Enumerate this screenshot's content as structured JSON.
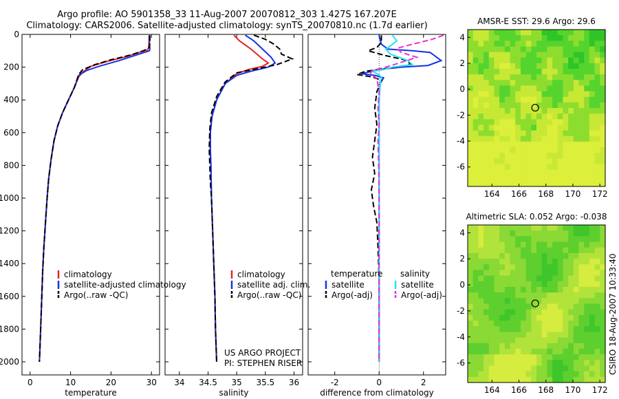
{
  "titles": {
    "line1": "Argo profile: AO 5901358_33 11-Aug-2007 20070812_303 1.427S 167.207E",
    "line2": "Climatology: CARS2006. Satellite-adjusted climatology: synTS_20070810.nc (1.7d earlier)"
  },
  "stamp": "CSIRO 18-Aug-2007 10:33:40",
  "project": {
    "line1": "US ARGO PROJECT",
    "line2": "PI: STEPHEN RISER"
  },
  "colors": {
    "clim": "#e8231e",
    "sat": "#1431e6",
    "argo": "#000000",
    "sat_sal": "#27e0f0",
    "argo_sal": "#e62fd2"
  },
  "chart_data": [
    {
      "type": "line",
      "id": "temperature",
      "xlabel": "temperature",
      "ylabel": "",
      "xlim": [
        -2,
        32
      ],
      "ylim": [
        2080,
        0
      ],
      "xticks": [
        0,
        10,
        20,
        30
      ],
      "yticks": [
        0,
        200,
        400,
        600,
        800,
        1000,
        1200,
        1400,
        1600,
        1800,
        2000
      ],
      "legend": [
        "climatology",
        "satellite-adjusted climatology",
        "Argo(..raw -QC)"
      ],
      "series": [
        {
          "name": "climatology",
          "color": "clim",
          "dash": false,
          "points": [
            [
              29.4,
              5
            ],
            [
              29.4,
              40
            ],
            [
              29.3,
              80
            ],
            [
              29.0,
              95
            ],
            [
              27,
              110
            ],
            [
              24,
              135
            ],
            [
              19,
              165
            ],
            [
              15,
              195
            ],
            [
              13,
              230
            ],
            [
              12,
              260
            ],
            [
              11,
              320
            ],
            [
              9.5,
              400
            ],
            [
              8,
              480
            ],
            [
              6.8,
              560
            ],
            [
              5.9,
              650
            ],
            [
              5.2,
              760
            ],
            [
              4.6,
              880
            ],
            [
              4.2,
              1000
            ],
            [
              3.8,
              1150
            ],
            [
              3.4,
              1300
            ],
            [
              3.1,
              1450
            ],
            [
              2.9,
              1600
            ],
            [
              2.6,
              1800
            ],
            [
              2.3,
              2000
            ]
          ]
        },
        {
          "name": "satellite-adjusted climatology",
          "color": "sat",
          "dash": false,
          "points": [
            [
              29.5,
              5
            ],
            [
              29.5,
              60
            ],
            [
              29.6,
              90
            ],
            [
              29.5,
              100
            ],
            [
              27,
              120
            ],
            [
              22,
              160
            ],
            [
              17,
              195
            ],
            [
              14,
              220
            ],
            [
              12,
              250
            ],
            [
              11,
              320
            ],
            [
              9.5,
              400
            ],
            [
              8,
              480
            ],
            [
              6.8,
              560
            ],
            [
              5.9,
              650
            ],
            [
              5.2,
              760
            ],
            [
              4.6,
              880
            ],
            [
              4.2,
              1000
            ],
            [
              3.8,
              1150
            ],
            [
              3.4,
              1300
            ],
            [
              3.1,
              1450
            ],
            [
              2.9,
              1600
            ],
            [
              2.6,
              1800
            ],
            [
              2.3,
              2000
            ]
          ]
        },
        {
          "name": "Argo(..raw -QC)",
          "color": "argo",
          "dash": true,
          "points": [
            [
              29.6,
              5
            ],
            [
              29.6,
              50
            ],
            [
              29.5,
              80
            ],
            [
              28,
              100
            ],
            [
              25,
              125
            ],
            [
              20,
              155
            ],
            [
              16,
              185
            ],
            [
              13,
              215
            ],
            [
              12,
              245
            ],
            [
              11,
              320
            ],
            [
              9.5,
              400
            ],
            [
              8,
              480
            ],
            [
              6.8,
              560
            ],
            [
              5.9,
              650
            ],
            [
              5.2,
              760
            ],
            [
              4.6,
              880
            ],
            [
              4.2,
              1000
            ],
            [
              3.8,
              1150
            ],
            [
              3.4,
              1300
            ],
            [
              3.1,
              1450
            ],
            [
              2.9,
              1600
            ],
            [
              2.6,
              1800
            ],
            [
              2.3,
              2000
            ]
          ]
        }
      ]
    },
    {
      "type": "line",
      "id": "salinity",
      "xlabel": "salinity",
      "xlim": [
        33.75,
        36.15
      ],
      "ylim": [
        2080,
        0
      ],
      "xticks": [
        34,
        34.5,
        35,
        35.5,
        36
      ],
      "legend": [
        "climatology",
        "satellite adj. clim.",
        "Argo(..raw -QC)"
      ],
      "series": [
        {
          "name": "climatology",
          "color": "clim",
          "dash": false,
          "points": [
            [
              34.95,
              5
            ],
            [
              35.05,
              40
            ],
            [
              35.25,
              90
            ],
            [
              35.45,
              150
            ],
            [
              35.55,
              175
            ],
            [
              35.45,
              195
            ],
            [
              35.2,
              215
            ],
            [
              35.0,
              240
            ],
            [
              34.8,
              300
            ],
            [
              34.65,
              400
            ],
            [
              34.57,
              500
            ],
            [
              34.54,
              600
            ],
            [
              34.54,
              700
            ],
            [
              34.55,
              800
            ],
            [
              34.56,
              1000
            ],
            [
              34.58,
              1200
            ],
            [
              34.6,
              1400
            ],
            [
              34.62,
              1600
            ],
            [
              34.63,
              1800
            ],
            [
              34.65,
              2000
            ]
          ]
        },
        {
          "name": "satellite adj. clim.",
          "color": "sat",
          "dash": false,
          "points": [
            [
              35.15,
              5
            ],
            [
              35.3,
              40
            ],
            [
              35.45,
              90
            ],
            [
              35.6,
              140
            ],
            [
              35.67,
              175
            ],
            [
              35.55,
              200
            ],
            [
              35.25,
              225
            ],
            [
              35.0,
              250
            ],
            [
              34.8,
              300
            ],
            [
              34.65,
              400
            ],
            [
              34.57,
              500
            ],
            [
              34.54,
              600
            ],
            [
              34.54,
              700
            ],
            [
              34.55,
              800
            ],
            [
              34.56,
              1000
            ],
            [
              34.58,
              1200
            ],
            [
              34.6,
              1400
            ],
            [
              34.62,
              1600
            ],
            [
              34.63,
              1800
            ],
            [
              34.65,
              2000
            ]
          ]
        },
        {
          "name": "Argo(..raw -QC)",
          "color": "argo",
          "dash": true,
          "points": [
            [
              35.3,
              5
            ],
            [
              35.5,
              30
            ],
            [
              35.65,
              60
            ],
            [
              35.75,
              90
            ],
            [
              35.78,
              120
            ],
            [
              35.97,
              150
            ],
            [
              35.7,
              185
            ],
            [
              35.35,
              210
            ],
            [
              35.0,
              235
            ],
            [
              34.8,
              290
            ],
            [
              34.65,
              380
            ],
            [
              34.56,
              480
            ],
            [
              34.53,
              580
            ],
            [
              34.52,
              700
            ],
            [
              34.53,
              800
            ],
            [
              34.54,
              900
            ],
            [
              34.56,
              1000
            ],
            [
              34.58,
              1200
            ],
            [
              34.6,
              1400
            ],
            [
              34.62,
              1600
            ],
            [
              34.63,
              1800
            ],
            [
              34.65,
              2000
            ]
          ]
        }
      ],
      "annotation": "US ARGO PROJECT / PI: STEPHEN RISER"
    },
    {
      "type": "line",
      "id": "difference",
      "xlabel": "difference from climatology",
      "xlim": [
        -3.2,
        3.0
      ],
      "ylim": [
        2080,
        0
      ],
      "xticks": [
        -2,
        0,
        2
      ],
      "legend_title": [
        "temperature",
        "salinity"
      ],
      "legend": [
        "satellite",
        "Argo(-adj)",
        "satellite",
        "Argo(-adj)"
      ],
      "series": [
        {
          "name": "temperature satellite",
          "color": "sat",
          "dash": false,
          "points": [
            [
              0,
              5
            ],
            [
              0.1,
              60
            ],
            [
              0.4,
              90
            ],
            [
              1.5,
              100
            ],
            [
              2.3,
              110
            ],
            [
              2.8,
              160
            ],
            [
              2.2,
              190
            ],
            [
              1.0,
              200
            ],
            [
              0.3,
              210
            ],
            [
              -0.3,
              225
            ],
            [
              -0.8,
              240
            ],
            [
              -0.2,
              250
            ],
            [
              0.2,
              265
            ],
            [
              0.05,
              300
            ],
            [
              0,
              400
            ],
            [
              0,
              600
            ],
            [
              0,
              800
            ],
            [
              0,
              1000
            ],
            [
              0,
              1200
            ],
            [
              0,
              1400
            ],
            [
              0,
              1600
            ],
            [
              0,
              1800
            ],
            [
              0,
              2000
            ]
          ]
        },
        {
          "name": "temperature Argo(-adj)",
          "color": "argo",
          "dash": true,
          "points": [
            [
              0.1,
              5
            ],
            [
              0.1,
              50
            ],
            [
              -0.1,
              80
            ],
            [
              -0.5,
              100
            ],
            [
              0.3,
              130
            ],
            [
              1.3,
              160
            ],
            [
              1.4,
              185
            ],
            [
              0.5,
              205
            ],
            [
              -0.6,
              225
            ],
            [
              -1.0,
              245
            ],
            [
              -0.3,
              260
            ],
            [
              0.1,
              280
            ],
            [
              -0.1,
              350
            ],
            [
              -0.2,
              450
            ],
            [
              -0.1,
              550
            ],
            [
              -0.2,
              650
            ],
            [
              -0.3,
              750
            ],
            [
              -0.2,
              850
            ],
            [
              -0.35,
              950
            ],
            [
              -0.25,
              1050
            ],
            [
              -0.1,
              1150
            ],
            [
              -0.05,
              1300
            ],
            [
              0,
              1500
            ],
            [
              0,
              1700
            ],
            [
              0,
              1900
            ],
            [
              0,
              2000
            ]
          ]
        },
        {
          "name": "salinity satellite",
          "color": "sat_sal",
          "dash": false,
          "points": [
            [
              0.6,
              5
            ],
            [
              0.8,
              40
            ],
            [
              0.5,
              70
            ],
            [
              0.3,
              90
            ],
            [
              0.5,
              120
            ],
            [
              1.3,
              160
            ],
            [
              1.5,
              185
            ],
            [
              0.6,
              200
            ],
            [
              0.2,
              215
            ],
            [
              -0.3,
              225
            ],
            [
              -0.1,
              240
            ],
            [
              0.1,
              260
            ],
            [
              0.05,
              300
            ],
            [
              0,
              400
            ],
            [
              0,
              800
            ],
            [
              0,
              1200
            ],
            [
              0,
              1600
            ],
            [
              0,
              2000
            ]
          ]
        },
        {
          "name": "salinity Argo(-adj)",
          "color": "argo_sal",
          "dash": true,
          "points": [
            [
              2.9,
              5
            ],
            [
              2.4,
              30
            ],
            [
              1.5,
              60
            ],
            [
              0.8,
              85
            ],
            [
              1.0,
              110
            ],
            [
              1.7,
              140
            ],
            [
              0.9,
              175
            ],
            [
              0.3,
              200
            ],
            [
              -0.3,
              220
            ],
            [
              -0.4,
              240
            ],
            [
              -0.1,
              270
            ],
            [
              0,
              350
            ],
            [
              -0.05,
              450
            ],
            [
              0,
              550
            ],
            [
              -0.05,
              650
            ],
            [
              -0.02,
              800
            ],
            [
              0,
              1000
            ],
            [
              0,
              1500
            ],
            [
              0,
              2000
            ]
          ]
        }
      ]
    },
    {
      "type": "heatmap",
      "id": "sst-map",
      "title": "AMSR-E SST: 29.6 Argo: 29.6",
      "xlim": [
        162.2,
        172.4
      ],
      "ylim": [
        -7.5,
        4.6
      ],
      "xticks": [
        164,
        166,
        168,
        170,
        172
      ],
      "yticks": [
        4,
        2,
        0,
        -2,
        -4,
        -6
      ],
      "marker": {
        "lon": 167.207,
        "lat": -1.427
      },
      "colors": [
        "#2fc526",
        "#55d42e",
        "#8ddd2f",
        "#c8e836",
        "#dcef3a"
      ]
    },
    {
      "type": "heatmap",
      "id": "sla-map",
      "title": "Altimetric SLA: 0.052 Argo: -0.038",
      "xlim": [
        162.2,
        172.4
      ],
      "ylim": [
        -7.5,
        4.6
      ],
      "xticks": [
        164,
        166,
        168,
        170,
        172
      ],
      "yticks": [
        4,
        2,
        0,
        -2,
        -4,
        -6
      ],
      "marker": {
        "lon": 167.207,
        "lat": -1.427
      },
      "colors": [
        "#3fc62a",
        "#5dcf2e",
        "#8ad935",
        "#b2e33a",
        "#d6ec3e"
      ]
    }
  ]
}
